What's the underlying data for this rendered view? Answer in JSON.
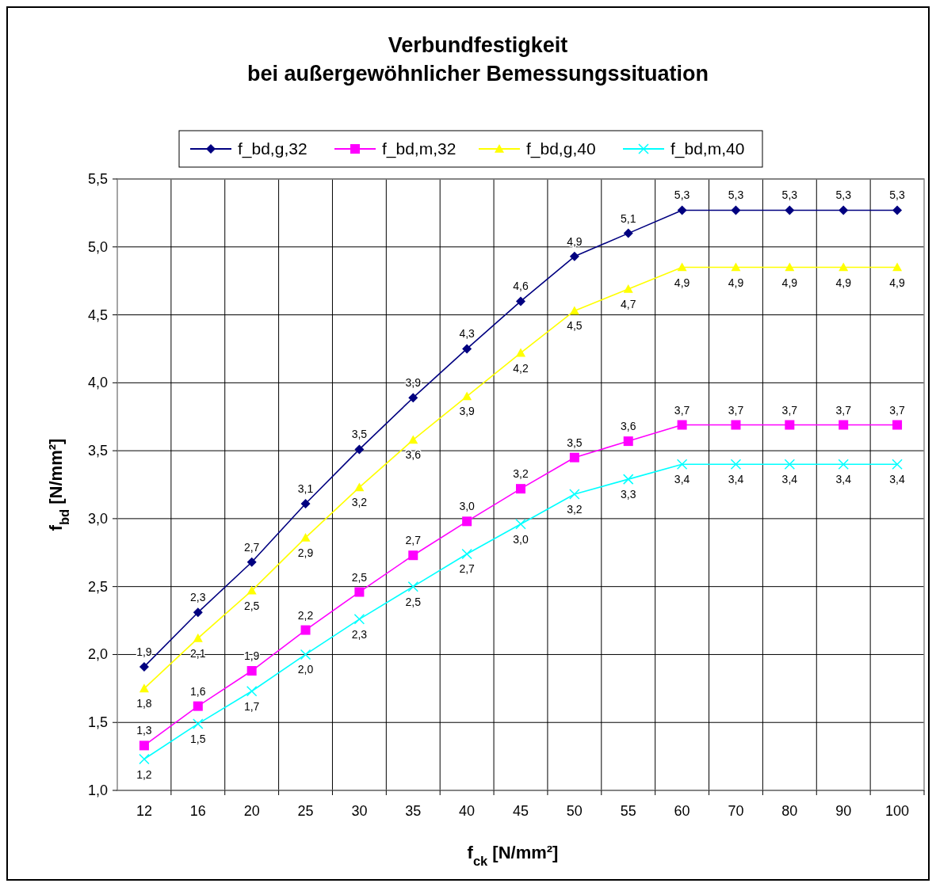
{
  "chart_data": {
    "type": "line",
    "title": "Verbundfestigkeit\nbei außergewöhnlicher Bemessungssituation",
    "xlabel": "f$_{ck}$  [N/mm²]",
    "ylabel": "f$_{bd}$  [N/mm²]",
    "categories": [
      "12",
      "16",
      "20",
      "25",
      "30",
      "35",
      "40",
      "45",
      "50",
      "55",
      "60",
      "70",
      "80",
      "90",
      "100"
    ],
    "ylim": [
      1,
      5.5
    ],
    "yticks": [
      {
        "value": 1,
        "label": "1,0"
      },
      {
        "value": 1.5,
        "label": "1,5"
      },
      {
        "value": 2,
        "label": "2,0"
      },
      {
        "value": 2.5,
        "label": "2,5"
      },
      {
        "value": 3,
        "label": "3,0"
      },
      {
        "value": 3.5,
        "label": "3,5"
      },
      {
        "value": 4,
        "label": "4,0"
      },
      {
        "value": 4.5,
        "label": "4,5"
      },
      {
        "value": 5,
        "label": "5,0"
      },
      {
        "value": 5.5,
        "label": "5,5"
      }
    ],
    "grid": true,
    "legend": "top",
    "line_style": "solid",
    "series": [
      {
        "name": "f_bd,g,32",
        "color": "#000080",
        "marker": "diamond",
        "values": [
          1.91,
          2.31,
          2.68,
          3.11,
          3.51,
          3.89,
          4.25,
          4.6,
          4.93,
          5.1,
          5.27,
          5.27,
          5.27,
          5.27,
          5.27
        ],
        "value_labels": [
          "1,9",
          "2,3",
          "2,7",
          "3,1",
          "3,5",
          "3,9",
          "4,3",
          "4,6",
          "4,9",
          "5,1",
          "5,3",
          "5,3",
          "5,3",
          "5,3",
          "5,3"
        ]
      },
      {
        "name": "f_bd,m,32",
        "color": "#ff00ff",
        "marker": "square",
        "values": [
          1.33,
          1.62,
          1.88,
          2.18,
          2.46,
          2.73,
          2.98,
          3.22,
          3.45,
          3.57,
          3.69,
          3.69,
          3.69,
          3.69,
          3.69
        ],
        "value_labels": [
          "1,3",
          "1,6",
          "1,9",
          "2,2",
          "2,5",
          "2,7",
          "3,0",
          "3,2",
          "3,5",
          "3,6",
          "3,7",
          "3,7",
          "3,7",
          "3,7",
          "3,7"
        ]
      },
      {
        "name": "f_bd,g,40",
        "color": "#ffff00",
        "marker": "triangle",
        "values": [
          1.75,
          2.12,
          2.47,
          2.86,
          3.23,
          3.58,
          3.9,
          4.22,
          4.53,
          4.69,
          4.85,
          4.85,
          4.85,
          4.85,
          4.85
        ],
        "value_labels": [
          "1,8",
          "2,1",
          "2,5",
          "2,9",
          "3,2",
          "3,6",
          "3,9",
          "4,2",
          "4,5",
          "4,7",
          "4,9",
          "4,9",
          "4,9",
          "4,9",
          "4,9"
        ]
      },
      {
        "name": "f_bd,m,40",
        "color": "#00ffff",
        "marker": "cross",
        "values": [
          1.23,
          1.49,
          1.73,
          2.0,
          2.26,
          2.5,
          2.74,
          2.96,
          3.18,
          3.29,
          3.4,
          3.4,
          3.4,
          3.4,
          3.4
        ],
        "value_labels": [
          "1,2",
          "1,5",
          "1,7",
          "2,0",
          "2,3",
          "2,5",
          "2,7",
          "3,0",
          "3,2",
          "3,3",
          "3,4",
          "3,4",
          "3,4",
          "3,4",
          "3,4"
        ]
      }
    ]
  }
}
